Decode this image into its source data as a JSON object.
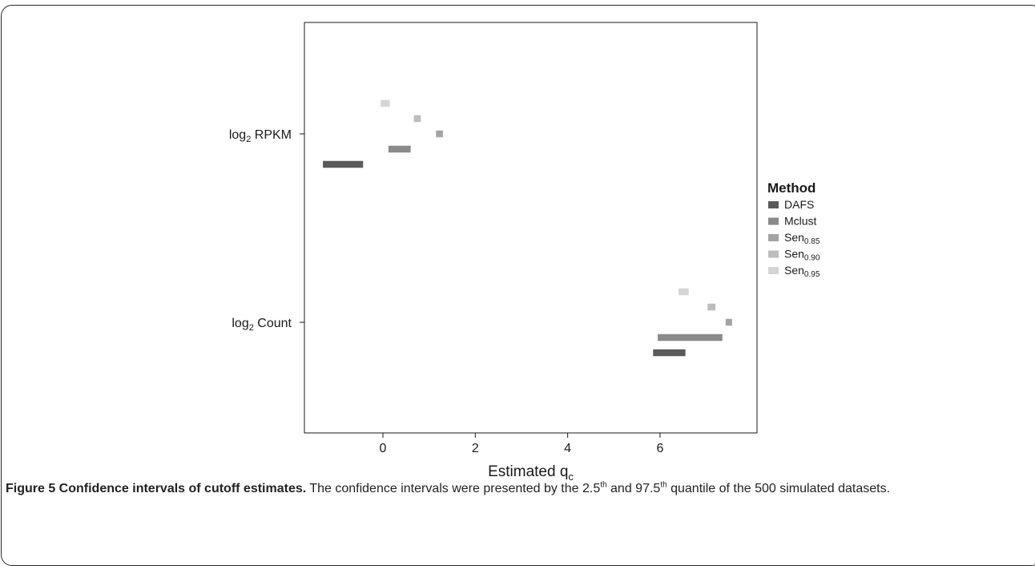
{
  "chart_data": {
    "type": "interval",
    "title": "",
    "xlabel": "Estimated q",
    "xlabel_sub": "c",
    "ylabel": "",
    "xlim": [
      -1.7,
      8.1
    ],
    "x_ticks": [
      0,
      2,
      4,
      6
    ],
    "x_tick_labels": [
      "0",
      "2",
      "4",
      "6"
    ],
    "categories": [
      {
        "base": "log",
        "sub": "2",
        "rest": " RPKM"
      },
      {
        "base": "log",
        "sub": "2",
        "rest": " Count"
      }
    ],
    "legend": {
      "title": "Method",
      "placement": "right",
      "entries": [
        {
          "base": "DAFS",
          "sub": ""
        },
        {
          "base": "Mclust",
          "sub": ""
        },
        {
          "base": "Sen",
          "sub": "0.85"
        },
        {
          "base": "Sen",
          "sub": "0.90"
        },
        {
          "base": "Sen",
          "sub": "0.95"
        }
      ]
    },
    "series": [
      {
        "name": "DAFS",
        "color": "#5a5a5a",
        "intervals": [
          [
            -1.3,
            -0.43
          ],
          [
            5.85,
            6.55
          ]
        ]
      },
      {
        "name": "Mclust",
        "color": "#8a8a8a",
        "intervals": [
          [
            0.12,
            0.6
          ],
          [
            5.95,
            7.35
          ]
        ]
      },
      {
        "name": "Sen0.85",
        "color": "#a4a4a4",
        "intervals": [
          [
            1.15,
            1.3
          ],
          [
            7.42,
            7.56
          ]
        ]
      },
      {
        "name": "Sen0.90",
        "color": "#bdbdbd",
        "intervals": [
          [
            0.67,
            0.82
          ],
          [
            7.03,
            7.2
          ]
        ]
      },
      {
        "name": "Sen0.95",
        "color": "#d5d5d5",
        "intervals": [
          [
            -0.05,
            0.15
          ],
          [
            6.4,
            6.62
          ]
        ]
      }
    ],
    "grid": false
  },
  "caption": {
    "label": "Figure 5 Confidence intervals of cutoff estimates.",
    "text_1": " The confidence intervals were presented by the 2.5",
    "sup_1": "th",
    "text_2": " and 97.5",
    "sup_2": "th",
    "text_3": " quantile of the 500 simulated datasets."
  }
}
